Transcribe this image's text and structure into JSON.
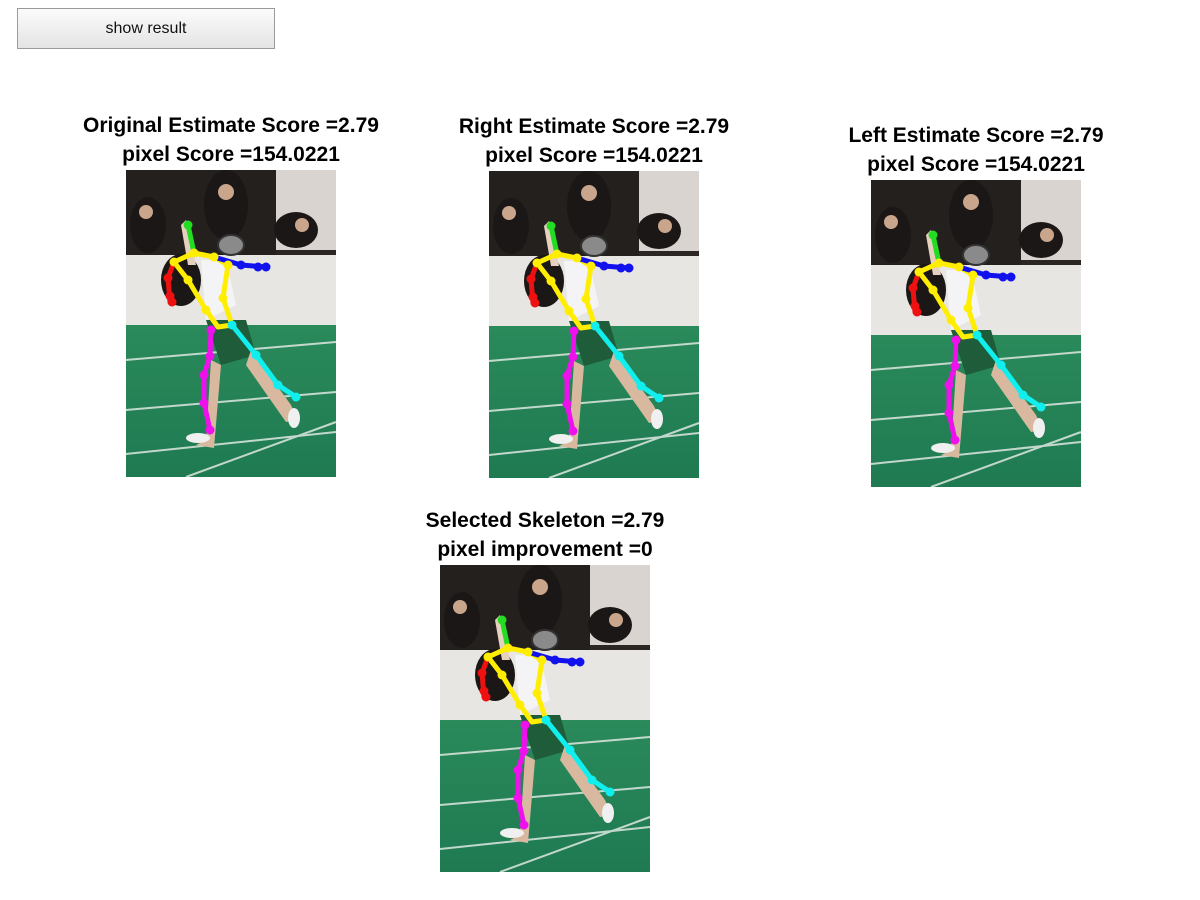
{
  "toolbar": {
    "show_result_label": "show result"
  },
  "panels": [
    {
      "id": "original",
      "title": "Original Estimate Score =2.79",
      "subtitle": "pixel Score =154.0221"
    },
    {
      "id": "right",
      "title": "Right Estimate Score =2.79",
      "subtitle": "pixel Score =154.0221"
    },
    {
      "id": "left",
      "title": "Left Estimate Score =2.79",
      "subtitle": "pixel Score =154.0221"
    },
    {
      "id": "selected",
      "title": "Selected Skeleton =2.79",
      "subtitle": "pixel improvement =0"
    }
  ],
  "skeleton_colors": {
    "head": "#22dd22",
    "torso": "#ffee00",
    "right_arm": "#1111ee",
    "left_arm": "#ee1111",
    "right_leg": "#11eeee",
    "left_leg": "#ee11ee"
  }
}
